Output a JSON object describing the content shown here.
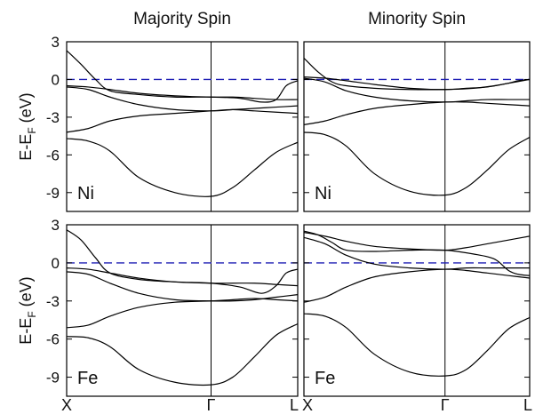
{
  "colors": {
    "bands": "#000000",
    "fermi_level": "#1f1fb4",
    "background": "#ffffff"
  },
  "chart_data": {
    "type": "line",
    "layout_grid": "2x2",
    "ylabel_parts": [
      "E-E",
      "F",
      " (eV)"
    ],
    "k_points": [
      {
        "label": "X",
        "k": 0
      },
      {
        "label": "Γ",
        "k": 1
      },
      {
        "label": "L",
        "k": 1.6
      }
    ],
    "columns": [
      {
        "title": "Majority Spin"
      },
      {
        "title": "Minority Spin"
      }
    ],
    "ylim": [
      -10.5,
      3
    ],
    "yticks": [
      3,
      0,
      -3,
      -6,
      -9
    ],
    "fermi_energy": 0,
    "panels": [
      {
        "id": "ni-majority",
        "label": "Ni",
        "row": 0,
        "col": 0,
        "bands": [
          {
            "name": "b1",
            "k": [
              0,
              0.15,
              0.3,
              0.5,
              0.75,
              1,
              1.15,
              1.3,
              1.45,
              1.6
            ],
            "E": [
              -4.7,
              -4.9,
              -5.7,
              -7.8,
              -9.0,
              -9.3,
              -8.6,
              -7.2,
              -5.8,
              -5.0
            ]
          },
          {
            "name": "b2",
            "k": [
              0,
              0.15,
              0.3,
              0.5,
              0.75,
              1,
              1.15,
              1.3,
              1.45,
              1.6
            ],
            "E": [
              -4.2,
              -3.9,
              -3.3,
              -2.9,
              -2.7,
              -2.5,
              -2.4,
              -2.5,
              -2.6,
              -2.7
            ]
          },
          {
            "name": "b3",
            "k": [
              0,
              0.15,
              0.3,
              0.5,
              0.75,
              1,
              1.15,
              1.3,
              1.45,
              1.6
            ],
            "E": [
              -0.6,
              -0.8,
              -1.4,
              -2.0,
              -2.4,
              -2.5,
              -2.4,
              -2.3,
              -2.2,
              -2.1
            ]
          },
          {
            "name": "b4",
            "k": [
              0,
              0.15,
              0.3,
              0.5,
              0.75,
              1,
              1.15,
              1.3,
              1.45,
              1.6
            ],
            "E": [
              -0.5,
              -0.6,
              -0.8,
              -1.1,
              -1.3,
              -1.4,
              -1.4,
              -1.5,
              -1.6,
              -1.6
            ]
          },
          {
            "name": "b5",
            "k": [
              0,
              0.1,
              0.2,
              0.3,
              0.5,
              0.75,
              1,
              1.2,
              1.35,
              1.45,
              1.52,
              1.6
            ],
            "E": [
              2.3,
              1.2,
              0.0,
              -0.9,
              -1.2,
              -1.4,
              -1.4,
              -1.5,
              -1.8,
              -1.6,
              -0.5,
              -0.1
            ]
          }
        ]
      },
      {
        "id": "ni-minority",
        "label": "Ni",
        "row": 0,
        "col": 1,
        "bands": [
          {
            "name": "b1",
            "k": [
              0,
              0.15,
              0.3,
              0.5,
              0.75,
              1,
              1.15,
              1.3,
              1.45,
              1.6
            ],
            "E": [
              -4.2,
              -4.4,
              -5.3,
              -7.5,
              -8.9,
              -9.2,
              -8.6,
              -7.2,
              -5.6,
              -4.6
            ]
          },
          {
            "name": "b2",
            "k": [
              0,
              0.15,
              0.3,
              0.5,
              0.75,
              1,
              1.15,
              1.3,
              1.45,
              1.6
            ],
            "E": [
              -3.6,
              -3.3,
              -2.8,
              -2.3,
              -2.0,
              -1.8,
              -1.8,
              -1.9,
              -2.0,
              -2.1
            ]
          },
          {
            "name": "b3",
            "k": [
              0,
              0.15,
              0.3,
              0.5,
              0.75,
              1,
              1.15,
              1.3,
              1.45,
              1.6
            ],
            "E": [
              0.1,
              -0.2,
              -0.9,
              -1.4,
              -1.7,
              -1.8,
              -1.7,
              -1.6,
              -1.6,
              -1.6
            ]
          },
          {
            "name": "b4",
            "k": [
              0,
              0.15,
              0.3,
              0.5,
              0.75,
              1,
              1.15,
              1.3,
              1.45,
              1.6
            ],
            "E": [
              0.2,
              0.1,
              -0.1,
              -0.4,
              -0.7,
              -0.8,
              -0.7,
              -0.6,
              -0.3,
              0.0
            ]
          },
          {
            "name": "b5",
            "k": [
              0,
              0.1,
              0.2,
              0.3,
              0.5,
              0.75,
              1,
              1.2,
              1.35,
              1.45,
              1.52,
              1.6
            ],
            "E": [
              1.7,
              0.6,
              -0.2,
              -0.5,
              -0.7,
              -0.8,
              -0.8,
              -0.7,
              -0.5,
              -0.3,
              -0.1,
              0.0
            ]
          }
        ]
      },
      {
        "id": "fe-majority",
        "label": "Fe",
        "row": 1,
        "col": 0,
        "bands": [
          {
            "name": "b1",
            "k": [
              0,
              0.15,
              0.3,
              0.5,
              0.75,
              1,
              1.15,
              1.3,
              1.45,
              1.6
            ],
            "E": [
              -5.8,
              -5.9,
              -6.6,
              -8.4,
              -9.4,
              -9.6,
              -9.0,
              -7.4,
              -5.7,
              -4.8
            ]
          },
          {
            "name": "b2",
            "k": [
              0,
              0.15,
              0.3,
              0.5,
              0.75,
              1,
              1.15,
              1.3,
              1.45,
              1.6
            ],
            "E": [
              -5.1,
              -4.9,
              -4.2,
              -3.5,
              -3.1,
              -3.0,
              -2.9,
              -2.8,
              -2.9,
              -3.0
            ]
          },
          {
            "name": "b3",
            "k": [
              0,
              0.15,
              0.3,
              0.5,
              0.75,
              1,
              1.15,
              1.3,
              1.45,
              1.6
            ],
            "E": [
              -0.7,
              -0.9,
              -1.6,
              -2.4,
              -2.9,
              -3.0,
              -3.0,
              -2.9,
              -2.7,
              -2.5
            ]
          },
          {
            "name": "b4",
            "k": [
              0,
              0.15,
              0.3,
              0.5,
              0.75,
              1,
              1.15,
              1.3,
              1.45,
              1.6
            ],
            "E": [
              -0.4,
              -0.5,
              -0.8,
              -1.2,
              -1.5,
              -1.6,
              -1.6,
              -1.6,
              -1.7,
              -1.8
            ]
          },
          {
            "name": "b5",
            "k": [
              0,
              0.1,
              0.2,
              0.3,
              0.5,
              0.75,
              1,
              1.2,
              1.35,
              1.45,
              1.52,
              1.6
            ],
            "E": [
              2.6,
              1.8,
              0.4,
              -0.8,
              -1.3,
              -1.5,
              -1.6,
              -1.9,
              -2.4,
              -1.8,
              -0.8,
              -0.5
            ]
          }
        ]
      },
      {
        "id": "fe-minority",
        "label": "Fe",
        "row": 1,
        "col": 1,
        "bands": [
          {
            "name": "b1",
            "k": [
              0,
              0.15,
              0.3,
              0.5,
              0.75,
              1,
              1.15,
              1.3,
              1.45,
              1.6
            ],
            "E": [
              -4.0,
              -4.2,
              -5.1,
              -7.2,
              -8.6,
              -8.9,
              -8.4,
              -6.9,
              -5.2,
              -4.3
            ]
          },
          {
            "name": "b2",
            "k": [
              0,
              0.15,
              0.3,
              0.5,
              0.75,
              1,
              1.15,
              1.3,
              1.45,
              1.6
            ],
            "E": [
              -3.1,
              -2.7,
              -1.9,
              -1.1,
              -0.7,
              -0.5,
              -0.6,
              -0.8,
              -1.0,
              -1.2
            ]
          },
          {
            "name": "b3",
            "k": [
              0,
              0.15,
              0.3,
              0.5,
              0.75,
              1,
              1.15,
              1.3,
              1.45,
              1.6
            ],
            "E": [
              2.0,
              1.5,
              0.6,
              -0.1,
              -0.4,
              -0.5,
              -0.4,
              -0.4,
              -0.4,
              -0.4
            ]
          },
          {
            "name": "b4",
            "k": [
              0,
              0.15,
              0.3,
              0.5,
              0.75,
              1,
              1.15,
              1.3,
              1.45,
              1.6
            ],
            "E": [
              2.4,
              2.1,
              1.7,
              1.3,
              1.1,
              1.0,
              1.2,
              1.5,
              1.8,
              2.1
            ]
          },
          {
            "name": "b5",
            "k": [
              0,
              0.1,
              0.2,
              0.3,
              0.5,
              0.75,
              1,
              1.2,
              1.35,
              1.45,
              1.52,
              1.6
            ],
            "E": [
              2.5,
              2.2,
              1.6,
              1.0,
              0.9,
              1.0,
              1.0,
              0.7,
              0.3,
              -0.6,
              -0.9,
              -1.0
            ]
          }
        ]
      }
    ]
  }
}
